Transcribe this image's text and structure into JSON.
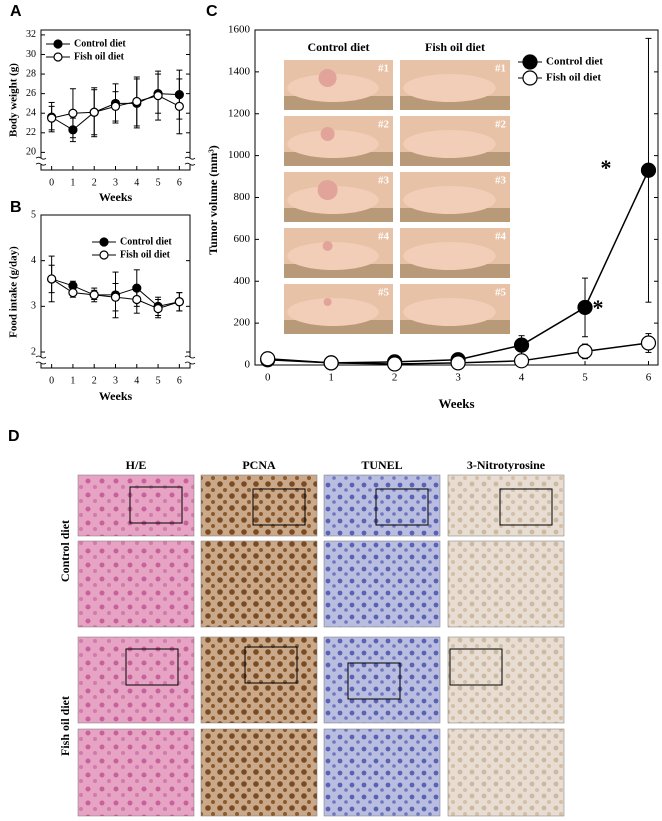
{
  "panel_labels": [
    "A",
    "B",
    "C",
    "D"
  ],
  "chart_data": [
    {
      "type": "line",
      "ylabel": "Body weight (g)",
      "xlabel": "Weeks",
      "x": [
        0,
        1,
        2,
        3,
        4,
        5,
        6
      ],
      "xlim": [
        -0.5,
        6.5
      ],
      "xticks": [
        0,
        1,
        2,
        3,
        4,
        5,
        6
      ],
      "ylim": [
        18.2,
        32.5
      ],
      "yticks": [
        20,
        22,
        24,
        26,
        28,
        30,
        32
      ],
      "axis_break": true,
      "grid": false,
      "legend": "upper left",
      "series": [
        {
          "name": "Control diet",
          "color": "#000000",
          "marker_fill": "#000000",
          "values": [
            23.6,
            22.3,
            24.1,
            25.0,
            25.0,
            26.0,
            25.9
          ],
          "errors": [
            1.5,
            1.2,
            2.3,
            2.0,
            2.5,
            2.0,
            2.5
          ]
        },
        {
          "name": "Fish oil diet",
          "color": "#000000",
          "marker_fill": "#ffffff",
          "values": [
            23.5,
            24.0,
            24.1,
            24.7,
            25.2,
            25.8,
            24.7
          ],
          "errors": [
            1.2,
            2.5,
            2.5,
            1.5,
            2.5,
            2.5,
            2.8
          ]
        }
      ]
    },
    {
      "type": "line",
      "ylabel": "Food intake (g/day)",
      "xlabel": "Weeks",
      "x": [
        0,
        1,
        2,
        3,
        4,
        5,
        6
      ],
      "xlim": [
        -0.5,
        6.5
      ],
      "xticks": [
        0,
        1,
        2,
        3,
        4,
        5,
        6
      ],
      "ylim": [
        1.65,
        5.0
      ],
      "yticks": [
        2,
        3,
        4,
        5
      ],
      "axis_break": true,
      "grid": false,
      "legend": "upper right",
      "series": [
        {
          "name": "Control diet",
          "color": "#000000",
          "marker_fill": "#000000",
          "values": [
            3.6,
            3.45,
            3.25,
            3.25,
            3.4,
            3.0,
            3.1
          ],
          "errors": [
            0.5,
            0.1,
            0.15,
            0.5,
            0.4,
            0.2,
            0.2
          ]
        },
        {
          "name": "Fish oil diet",
          "color": "#000000",
          "marker_fill": "#ffffff",
          "values": [
            3.6,
            3.3,
            3.25,
            3.2,
            3.15,
            2.95,
            3.1
          ],
          "errors": [
            0.3,
            0.1,
            0.1,
            0.3,
            0.3,
            0.2,
            0.2
          ]
        }
      ]
    },
    {
      "type": "line",
      "ylabel": "Tumor volume (mm³)",
      "xlabel": "Weeks",
      "x": [
        0,
        1,
        2,
        3,
        4,
        5,
        6
      ],
      "xlim": [
        -0.2,
        6.15
      ],
      "xticks": [
        0,
        1,
        2,
        3,
        4,
        5,
        6
      ],
      "ylim": [
        0,
        1600
      ],
      "yticks": [
        0,
        200,
        400,
        600,
        800,
        1000,
        1200,
        1400,
        1600
      ],
      "axis_break": false,
      "grid": false,
      "legend": "upper right",
      "annotations": [
        "*",
        "*"
      ],
      "series": [
        {
          "name": "Control diet",
          "color": "#000000",
          "marker_fill": "#000000",
          "values": [
            25,
            10,
            15,
            25,
            95,
            275,
            930
          ],
          "errors": [
            10,
            5,
            10,
            10,
            45,
            140,
            630
          ]
        },
        {
          "name": "Fish oil diet",
          "color": "#000000",
          "marker_fill": "#ffffff",
          "values": [
            30,
            10,
            5,
            10,
            20,
            65,
            105
          ],
          "errors": [
            10,
            5,
            5,
            10,
            15,
            35,
            45
          ]
        }
      ]
    }
  ],
  "photos": {
    "column_titles": [
      "Control diet",
      "Fish oil diet"
    ],
    "ids": [
      "#1",
      "#2",
      "#3",
      "#4",
      "#5"
    ]
  },
  "histology": {
    "columns": [
      "H/E",
      "PCNA",
      "TUNEL",
      "3-Nitrotyrosine"
    ],
    "rows": [
      "Control diet",
      "Fish oil diet"
    ]
  }
}
